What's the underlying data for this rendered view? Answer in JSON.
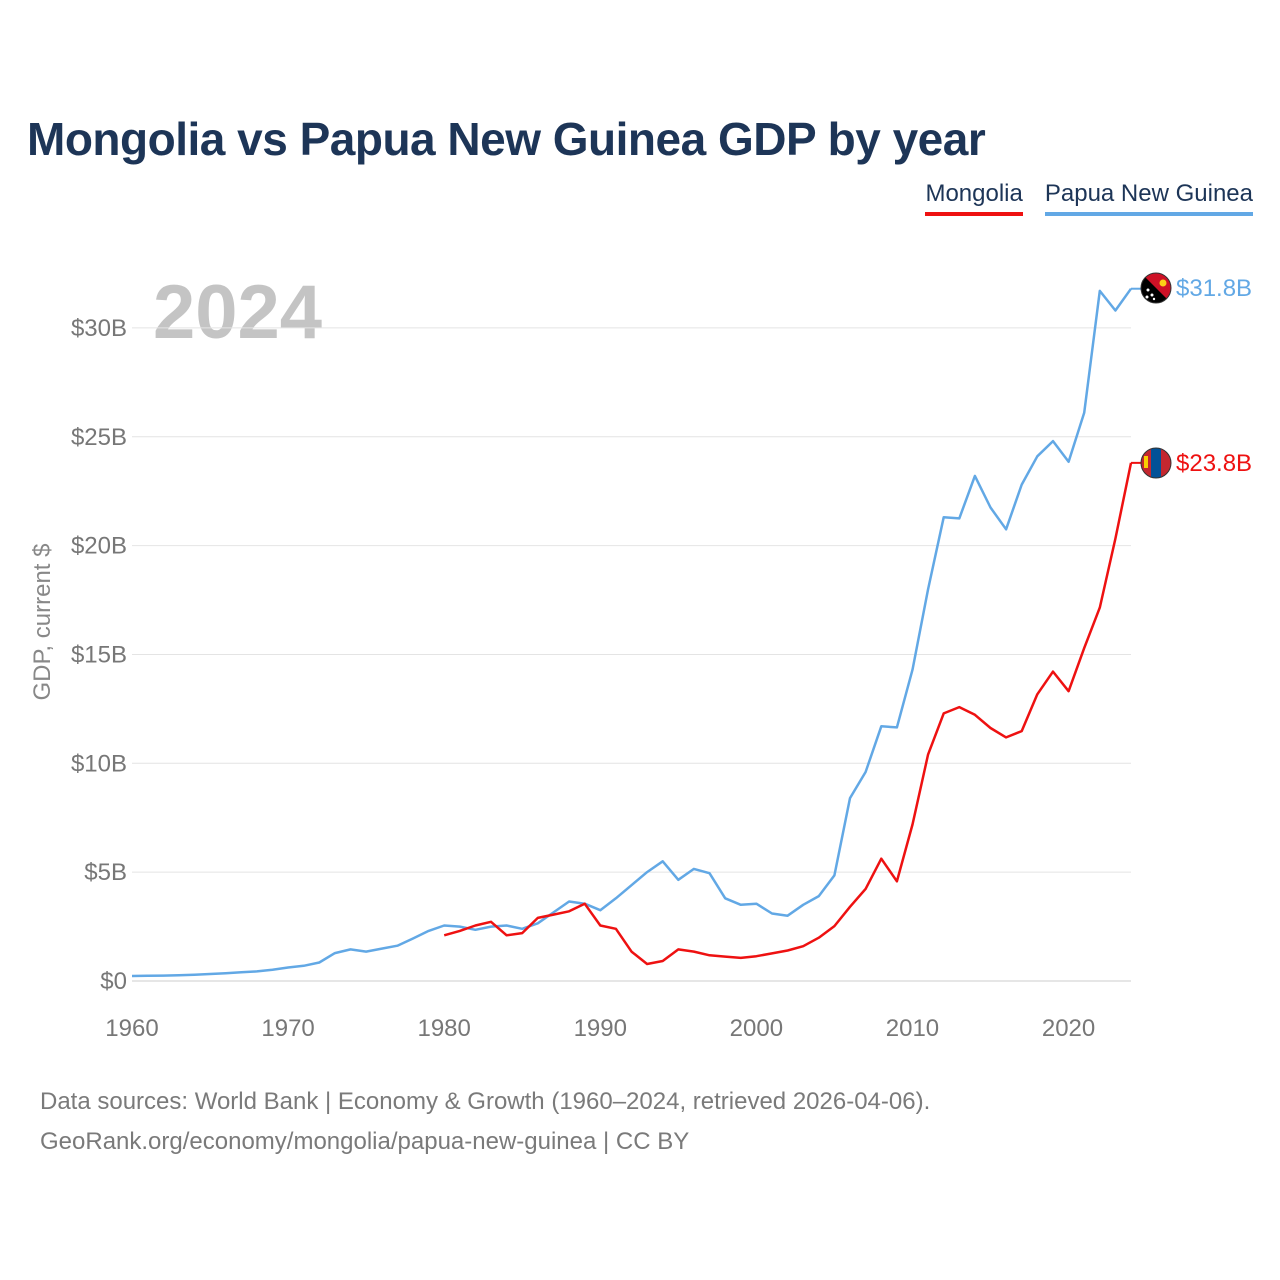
{
  "title": "Mongolia vs Papua New Guinea GDP by year",
  "legend": {
    "mongolia": "Mongolia",
    "png": "Papua New Guinea"
  },
  "colors": {
    "mongolia": "#ee1111",
    "png": "#62a8e5",
    "title": "#1d3557"
  },
  "year_watermark": "2024",
  "flags": {
    "png": "papua-new-guinea-flag-icon",
    "mongolia": "mongolia-flag-icon"
  },
  "end_labels": {
    "png": "$31.8B",
    "mongolia": "$23.8B"
  },
  "footer": {
    "line1": "Data sources: World Bank | Economy & Growth (1960–2024, retrieved 2026-04-06).",
    "line2": "GeoRank.org/economy/mongolia/papua-new-guinea | CC BY"
  },
  "chart_data": {
    "type": "line",
    "title": "Mongolia vs Papua New Guinea GDP by year",
    "xlabel": "",
    "ylabel": "GDP, current $",
    "xlim": [
      1960,
      2024
    ],
    "ylim": [
      0,
      32
    ],
    "xticks": [
      1960,
      1970,
      1980,
      1990,
      2000,
      2010,
      2020
    ],
    "xtick_labels": [
      "1960",
      "1970",
      "1980",
      "1990",
      "2000",
      "2010",
      "2020"
    ],
    "yticks": [
      0,
      5,
      10,
      15,
      20,
      25,
      30
    ],
    "ytick_labels": [
      "$0",
      "$5B",
      "$10B",
      "$15B",
      "$20B",
      "$25B",
      "$30B"
    ],
    "grid": true,
    "legend_position": "top-right",
    "units": "billions of current US$",
    "series": [
      {
        "name": "Papua New Guinea",
        "key": "png",
        "x": [
          1960,
          1961,
          1962,
          1963,
          1964,
          1965,
          1966,
          1967,
          1968,
          1969,
          1970,
          1971,
          1972,
          1973,
          1974,
          1975,
          1976,
          1977,
          1978,
          1979,
          1980,
          1981,
          1982,
          1983,
          1984,
          1985,
          1986,
          1987,
          1988,
          1989,
          1990,
          1991,
          1992,
          1993,
          1994,
          1995,
          1996,
          1997,
          1998,
          1999,
          2000,
          2001,
          2002,
          2003,
          2004,
          2005,
          2006,
          2007,
          2008,
          2009,
          2010,
          2011,
          2012,
          2013,
          2014,
          2015,
          2016,
          2017,
          2018,
          2019,
          2020,
          2021,
          2022,
          2023,
          2024
        ],
        "values": [
          0.23,
          0.24,
          0.25,
          0.26,
          0.29,
          0.32,
          0.36,
          0.4,
          0.44,
          0.52,
          0.62,
          0.7,
          0.85,
          1.28,
          1.45,
          1.35,
          1.49,
          1.62,
          1.95,
          2.3,
          2.55,
          2.5,
          2.35,
          2.5,
          2.55,
          2.4,
          2.65,
          3.15,
          3.65,
          3.55,
          3.25,
          3.8,
          4.4,
          5.0,
          5.5,
          4.65,
          5.15,
          4.95,
          3.8,
          3.5,
          3.55,
          3.1,
          3.0,
          3.5,
          3.9,
          4.85,
          8.4,
          9.6,
          11.7,
          11.65,
          14.3,
          18.0,
          21.3,
          21.25,
          23.2,
          21.75,
          20.75,
          22.8,
          24.1,
          24.8,
          23.85,
          26.1,
          31.7,
          30.8,
          31.8
        ]
      },
      {
        "name": "Mongolia",
        "key": "mongolia",
        "x": [
          1980,
          1981,
          1982,
          1983,
          1984,
          1985,
          1986,
          1987,
          1988,
          1989,
          1990,
          1991,
          1992,
          1993,
          1994,
          1995,
          1996,
          1997,
          1998,
          1999,
          2000,
          2001,
          2002,
          2003,
          2004,
          2005,
          2006,
          2007,
          2008,
          2009,
          2010,
          2011,
          2012,
          2013,
          2014,
          2015,
          2016,
          2017,
          2018,
          2019,
          2020,
          2021,
          2022,
          2023,
          2024
        ],
        "values": [
          2.1,
          2.3,
          2.55,
          2.72,
          2.1,
          2.2,
          2.9,
          3.05,
          3.2,
          3.55,
          2.55,
          2.4,
          1.35,
          0.78,
          0.92,
          1.45,
          1.35,
          1.18,
          1.12,
          1.06,
          1.14,
          1.27,
          1.4,
          1.6,
          1.99,
          2.52,
          3.41,
          4.23,
          5.62,
          4.58,
          7.19,
          10.41,
          12.29,
          12.58,
          12.23,
          11.62,
          11.19,
          11.48,
          13.17,
          14.21,
          13.31,
          15.29,
          17.15,
          20.32,
          23.8
        ]
      }
    ]
  }
}
